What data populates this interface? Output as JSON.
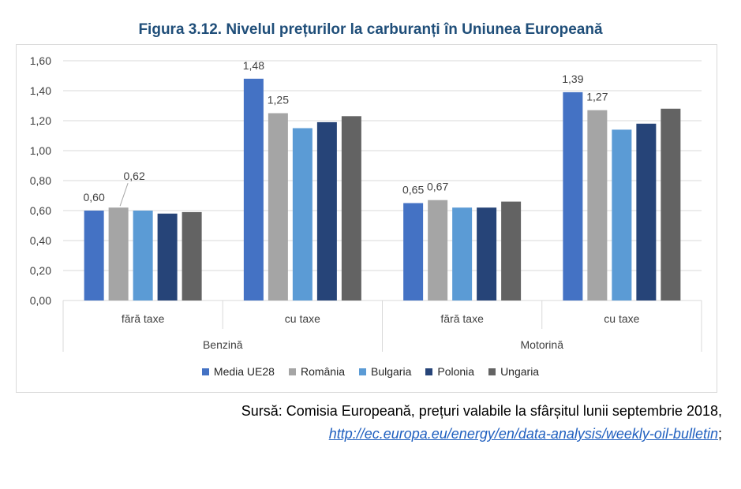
{
  "chart_data": {
    "type": "bar",
    "title": "Figura 3.12. Nivelul prețurilor la carburanți în Uniunea Europeană",
    "groups": [
      {
        "name": "Benzină",
        "categories": [
          "fără taxe",
          "cu taxe"
        ]
      },
      {
        "name": "Motorină",
        "categories": [
          "fără taxe",
          "cu taxe"
        ]
      }
    ],
    "categories": [
      "fără taxe",
      "cu taxe",
      "fără taxe",
      "cu taxe"
    ],
    "series": [
      {
        "name": "Media UE28",
        "color": "#4472c4",
        "values": [
          0.6,
          1.48,
          0.65,
          1.39
        ]
      },
      {
        "name": "România",
        "color": "#a5a5a5",
        "values": [
          0.62,
          1.25,
          0.67,
          1.27
        ]
      },
      {
        "name": "Bulgaria",
        "color": "#5b9bd5",
        "values": [
          0.6,
          1.15,
          0.62,
          1.14
        ]
      },
      {
        "name": "Polonia",
        "color": "#264478",
        "values": [
          0.58,
          1.19,
          0.62,
          1.18
        ]
      },
      {
        "name": "Ungaria",
        "color": "#636363",
        "values": [
          0.59,
          1.23,
          0.66,
          1.28
        ]
      }
    ],
    "data_labels": [
      {
        "series": 0,
        "category": 0,
        "text": "0,60"
      },
      {
        "series": 1,
        "category": 0,
        "text": "0,62"
      },
      {
        "series": 0,
        "category": 1,
        "text": "1,48"
      },
      {
        "series": 1,
        "category": 1,
        "text": "1,25"
      },
      {
        "series": 0,
        "category": 2,
        "text": "0,65"
      },
      {
        "series": 1,
        "category": 2,
        "text": "0,67"
      },
      {
        "series": 0,
        "category": 3,
        "text": "1,39"
      },
      {
        "series": 1,
        "category": 3,
        "text": "1,27"
      }
    ],
    "yticks": [
      "0,00",
      "0,20",
      "0,40",
      "0,60",
      "0,80",
      "1,00",
      "1,20",
      "1,40",
      "1,60"
    ],
    "ylim": [
      0,
      1.6
    ],
    "grid": true,
    "legend_position": "bottom"
  },
  "source": {
    "text": "Sursă: Comisia Europeană, prețuri valabile la sfârșitul lunii septembrie 2018,",
    "link": "http://ec.europa.eu/energy/en/data-analysis/weekly-oil-bulletin",
    "suffix": ";"
  }
}
